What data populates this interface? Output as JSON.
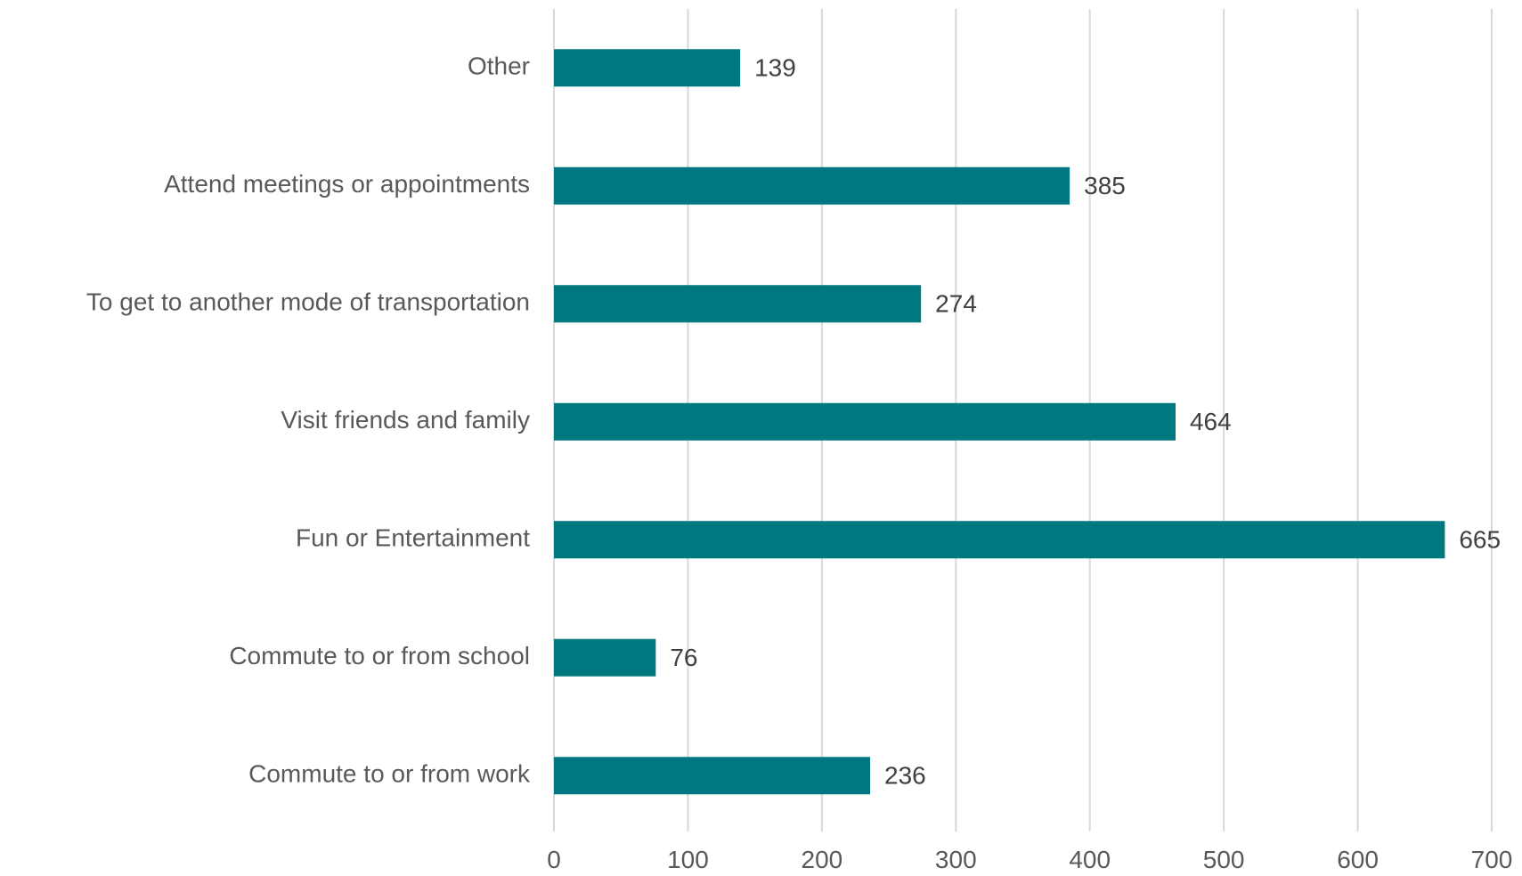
{
  "chart_data": {
    "type": "bar",
    "orientation": "horizontal",
    "categories": [
      "Other",
      "Attend meetings or appointments",
      "To get to another mode of transportation",
      "Visit friends and family",
      "Fun or Entertainment",
      "Commute to or from school",
      "Commute to or from work"
    ],
    "values": [
      139,
      385,
      274,
      464,
      665,
      76,
      236
    ],
    "xlim": [
      0,
      700
    ],
    "xticks": [
      0,
      100,
      200,
      300,
      400,
      500,
      600,
      700
    ],
    "title": "",
    "xlabel": "",
    "ylabel": "",
    "grid": "vertical",
    "data_labels": true,
    "bar_color": "#00787f"
  }
}
